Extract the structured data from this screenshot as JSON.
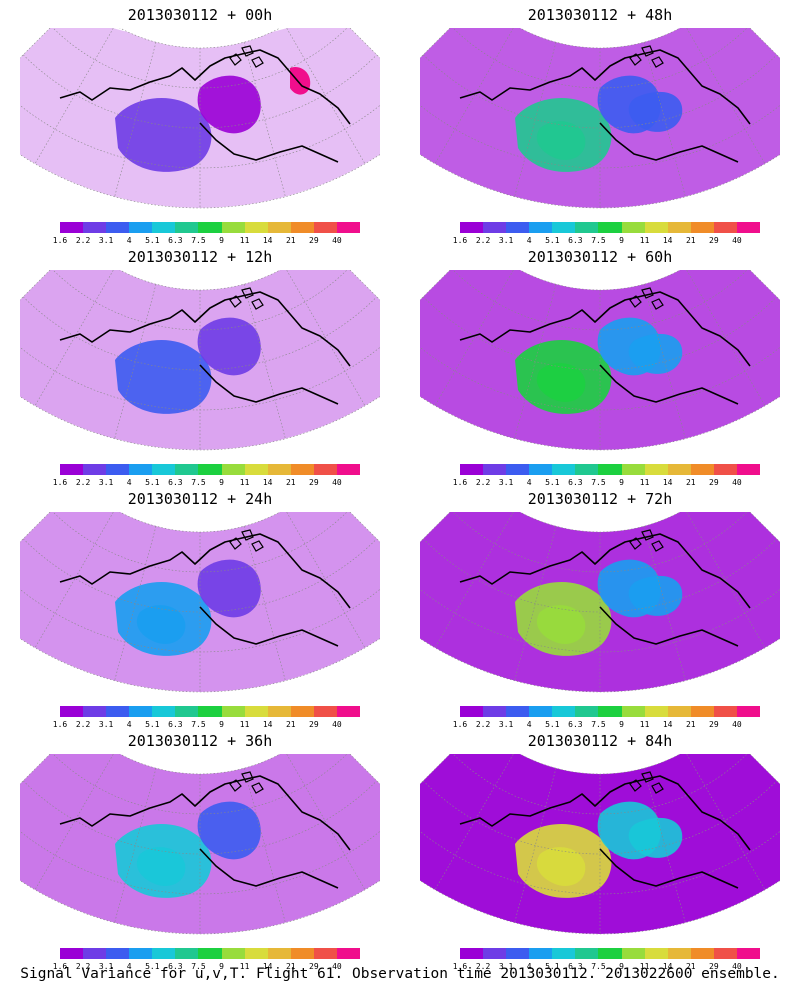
{
  "caption": "Signal Variance for u,v,T. Flight 61. Observation time 2013030112. 2013022600 ensemble.",
  "colorbar": {
    "labels": [
      "1.6",
      "2.2",
      "3.1",
      "4",
      "5.1",
      "6.3",
      "7.5",
      "9",
      "11",
      "14",
      "21",
      "29",
      "40"
    ],
    "colors": [
      "#9a00d6",
      "#6e3ce6",
      "#3c5cf0",
      "#1a9ef0",
      "#18c8d8",
      "#20c890",
      "#1cd040",
      "#98dc3c",
      "#d8dc3c",
      "#e6b838",
      "#f08c28",
      "#f05048",
      "#f00e8c"
    ]
  },
  "panels": [
    {
      "title": "2013030112 + 00h",
      "level": 0
    },
    {
      "title": "2013030112 + 48h",
      "level": 0.55
    },
    {
      "title": "2013030112 + 12h",
      "level": 0.15
    },
    {
      "title": "2013030112 + 60h",
      "level": 0.65
    },
    {
      "title": "2013030112 + 24h",
      "level": 0.25
    },
    {
      "title": "2013030112 + 72h",
      "level": 0.8
    },
    {
      "title": "2013030112 + 36h",
      "level": 0.4
    },
    {
      "title": "2013030112 + 84h",
      "level": 1
    }
  ]
}
